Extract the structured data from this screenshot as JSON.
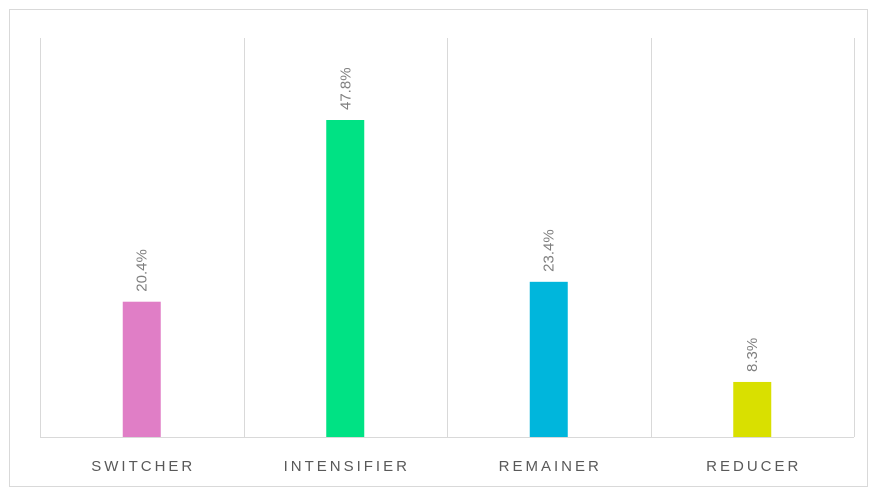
{
  "chart_data": {
    "type": "bar",
    "categories": [
      "SWITCHER",
      "INTENSIFIER",
      "REMAINER",
      "REDUCER"
    ],
    "values": [
      20.4,
      47.8,
      23.4,
      8.3
    ],
    "data_labels": [
      "20.4%",
      "47.8%",
      "23.4%",
      "8.3%"
    ],
    "colors": [
      "#e07ec6",
      "#00e284",
      "#00b6dc",
      "#d9e000"
    ],
    "title": "",
    "xlabel": "",
    "ylabel": "",
    "ylim": [
      0,
      48
    ],
    "grid": "vertical category separators",
    "legend": "none"
  }
}
